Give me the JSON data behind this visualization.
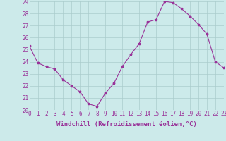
{
  "x": [
    0,
    1,
    2,
    3,
    4,
    5,
    6,
    7,
    8,
    9,
    10,
    11,
    12,
    13,
    14,
    15,
    16,
    17,
    18,
    19,
    20,
    21,
    22,
    23
  ],
  "y": [
    25.3,
    23.9,
    23.6,
    23.4,
    22.5,
    22.0,
    21.5,
    20.5,
    20.3,
    21.4,
    22.2,
    23.6,
    24.6,
    25.5,
    27.3,
    27.5,
    29.0,
    28.9,
    28.4,
    27.8,
    27.1,
    26.3,
    24.0,
    23.5
  ],
  "xlim": [
    0,
    23
  ],
  "ylim": [
    20,
    29
  ],
  "yticks": [
    20,
    21,
    22,
    23,
    24,
    25,
    26,
    27,
    28,
    29
  ],
  "xticks": [
    0,
    1,
    2,
    3,
    4,
    5,
    6,
    7,
    8,
    9,
    10,
    11,
    12,
    13,
    14,
    15,
    16,
    17,
    18,
    19,
    20,
    21,
    22,
    23
  ],
  "xlabel": "Windchill (Refroidissement éolien,°C)",
  "line_color": "#993399",
  "marker": "*",
  "bg_color": "#cceaea",
  "grid_color": "#aacccc",
  "label_fontsize": 6.5,
  "tick_fontsize": 5.5
}
